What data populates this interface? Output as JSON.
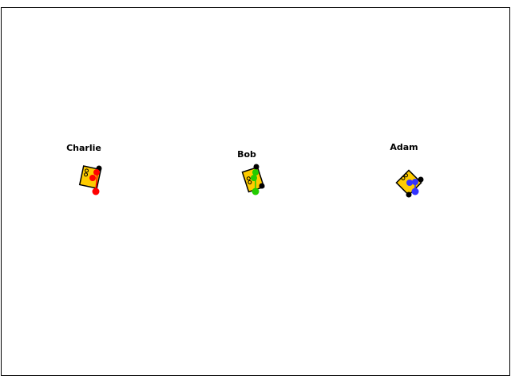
{
  "colors": {
    "background": "#ffffff",
    "border": "#000000",
    "box_fill": "#ffcc00",
    "box_outline": "#000000"
  },
  "players": [
    {
      "name": "Charlie",
      "color": "#ff0000",
      "icon": "device-box-icon"
    },
    {
      "name": "Bob",
      "color": "#22cc00",
      "icon": "device-box-icon"
    },
    {
      "name": "Adam",
      "color": "#3333ff",
      "icon": "device-box-icon"
    }
  ]
}
